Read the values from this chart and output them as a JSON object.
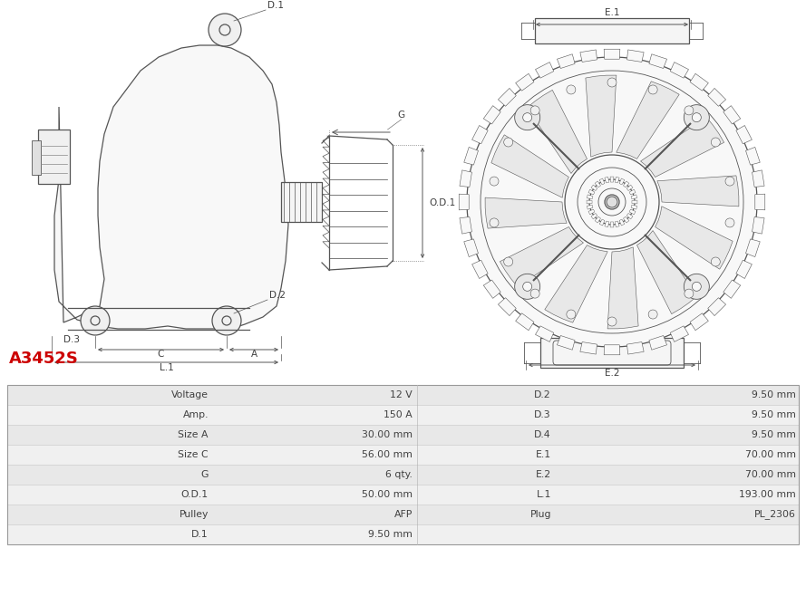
{
  "title": "A3452S",
  "title_color": "#cc0000",
  "bg_color": "#ffffff",
  "table_headers_left": [
    "Voltage",
    "Amp.",
    "Size A",
    "Size C",
    "G",
    "O.D.1",
    "Pulley",
    "D.1"
  ],
  "table_values_left": [
    "12 V",
    "150 A",
    "30.00 mm",
    "56.00 mm",
    "6 qty.",
    "50.00 mm",
    "AFP",
    "9.50 mm"
  ],
  "table_headers_right": [
    "D.2",
    "D.3",
    "D.4",
    "E.1",
    "E.2",
    "L.1",
    "Plug",
    ""
  ],
  "table_values_right": [
    "9.50 mm",
    "9.50 mm",
    "9.50 mm",
    "70.00 mm",
    "70.00 mm",
    "193.00 mm",
    "PL_2306",
    ""
  ],
  "row_colors": [
    "#e8e8e8",
    "#f0f0f0",
    "#e8e8e8",
    "#f0f0f0",
    "#e8e8e8",
    "#f0f0f0",
    "#e8e8e8",
    "#f0f0f0"
  ],
  "text_color": "#404040",
  "line_color": "#555555",
  "dim_color": "#555555"
}
